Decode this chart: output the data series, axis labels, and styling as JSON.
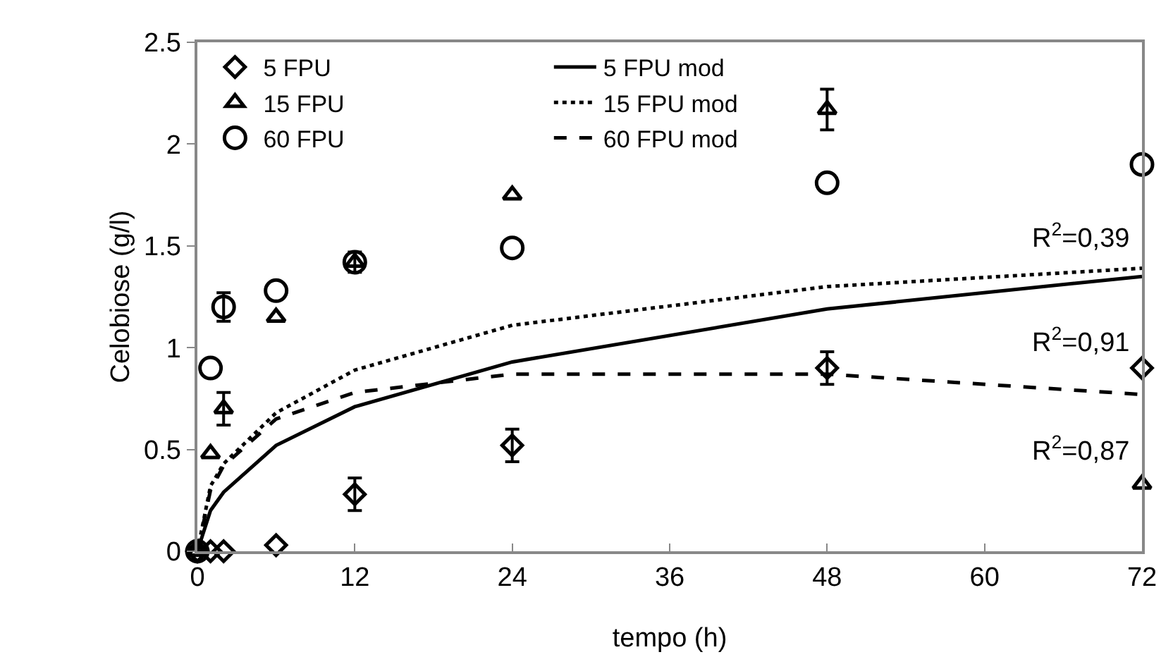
{
  "chart_data": {
    "type": "scatter",
    "xlabel": "tempo (h)",
    "ylabel": "Celobiose (g/l)",
    "x": [
      0,
      1,
      2,
      6,
      12,
      24,
      48,
      72
    ],
    "xlim": [
      0,
      72
    ],
    "xticks": [
      0,
      12,
      24,
      36,
      48,
      60,
      72
    ],
    "ylim": [
      0,
      2.5
    ],
    "yticks": [
      0,
      0.5,
      1,
      1.5,
      2,
      2.5
    ],
    "grid": false,
    "legend": "top left",
    "series": [
      {
        "name": "5 FPU",
        "color": "#000000",
        "marker": "diamond",
        "values": [
          0,
          0,
          0,
          0.03,
          0.28,
          0.52,
          0.9,
          0.9
        ],
        "errors": [
          null,
          null,
          null,
          null,
          0.08,
          0.08,
          0.08,
          null
        ]
      },
      {
        "name": "5 FPU mod",
        "type": "line",
        "color": "#000000",
        "line_style": "solid",
        "values": [
          0,
          0.2,
          0.29,
          0.52,
          0.71,
          0.93,
          1.19,
          1.35
        ]
      },
      {
        "name": "15 FPU",
        "color": "#000000",
        "marker": "triangle",
        "values": [
          0,
          0.48,
          0.7,
          1.15,
          1.42,
          1.75,
          2.17,
          0.33
        ],
        "errors": [
          null,
          null,
          0.08,
          null,
          null,
          null,
          0.1,
          null
        ]
      },
      {
        "name": "15 FPU mod",
        "type": "line",
        "color": "#000000",
        "line_style": "dotted",
        "values": [
          0,
          0.32,
          0.43,
          0.68,
          0.89,
          1.11,
          1.3,
          1.39
        ]
      },
      {
        "name": "60 FPU",
        "color": "#000000",
        "marker": "circle",
        "values": [
          0,
          0.9,
          1.2,
          1.28,
          1.42,
          1.49,
          1.81,
          1.9
        ],
        "errors": [
          null,
          null,
          0.07,
          null,
          0.05,
          null,
          null,
          null
        ]
      },
      {
        "name": "60 FPU mod",
        "type": "line",
        "color": "#000000",
        "line_style": "dashed",
        "values": [
          0,
          0.3,
          0.42,
          0.65,
          0.78,
          0.87,
          0.87,
          0.77
        ]
      }
    ],
    "annotations": [
      "R$^{2}$=0,39",
      "R$^{2}$=0,91",
      "R$^{2}$=0,87"
    ]
  }
}
